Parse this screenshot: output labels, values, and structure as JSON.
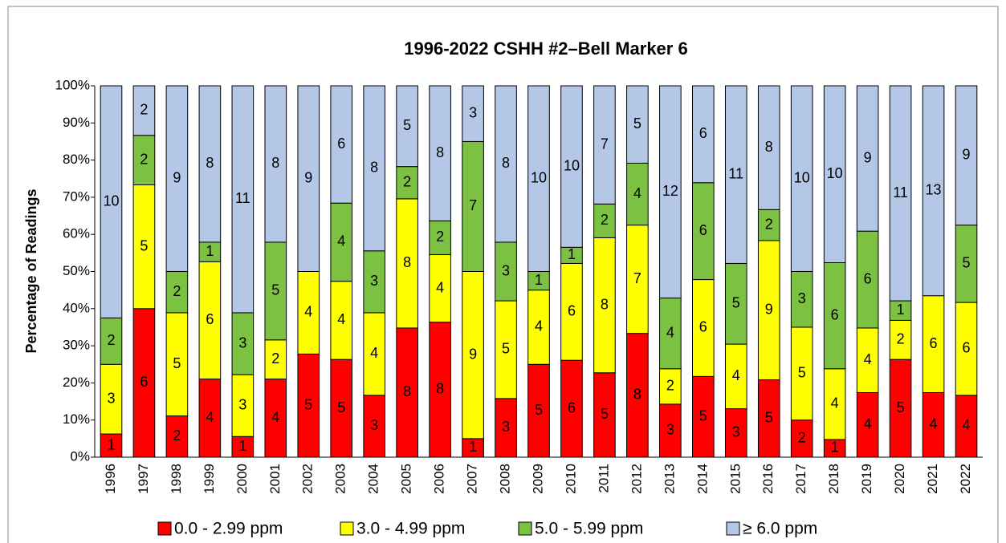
{
  "chart_data": {
    "type": "bar",
    "stacked": "percent",
    "title": "1996-2022 CSHH #2–Bell Marker 6",
    "y_label": "Percentage of Readings",
    "categories": [
      "1996",
      "1997",
      "1998",
      "1999",
      "2000",
      "2001",
      "2002",
      "2003",
      "2004",
      "2005",
      "2006",
      "2007",
      "2008",
      "2009",
      "2010",
      "2011",
      "2012",
      "2013",
      "2014",
      "2015",
      "2016",
      "2017",
      "2018",
      "2019",
      "2020",
      "2021",
      "2022"
    ],
    "series": [
      {
        "name": "0.0 - 2.99 ppm",
        "color": "#ff0000",
        "values": [
          1,
          6,
          2,
          4,
          1,
          4,
          5,
          5,
          3,
          8,
          8,
          1,
          3,
          5,
          6,
          5,
          8,
          3,
          5,
          3,
          5,
          2,
          1,
          4,
          5,
          4,
          4
        ]
      },
      {
        "name": "3.0 - 4.99 ppm",
        "color": "#ffff00",
        "values": [
          3,
          5,
          5,
          6,
          3,
          2,
          4,
          4,
          4,
          8,
          4,
          9,
          5,
          4,
          6,
          8,
          7,
          2,
          6,
          4,
          9,
          5,
          4,
          4,
          2,
          6,
          6
        ]
      },
      {
        "name": "5.0 - 5.99 ppm",
        "color": "#7cc142",
        "values": [
          2,
          2,
          2,
          1,
          3,
          5,
          0,
          4,
          3,
          2,
          2,
          7,
          3,
          1,
          1,
          2,
          4,
          4,
          6,
          5,
          2,
          3,
          6,
          6,
          1,
          0,
          5
        ]
      },
      {
        "name": "≥ 6.0 ppm",
        "color": "#b4c7e7",
        "values": [
          10,
          2,
          9,
          8,
          11,
          8,
          9,
          6,
          8,
          5,
          8,
          3,
          8,
          10,
          10,
          7,
          5,
          12,
          6,
          11,
          8,
          10,
          10,
          9,
          11,
          13,
          9
        ]
      }
    ],
    "ylim": [
      0,
      100
    ],
    "yticks": [
      {
        "value": 0,
        "label": "0%"
      },
      {
        "value": 10,
        "label": "10%"
      },
      {
        "value": 20,
        "label": "20%"
      },
      {
        "value": 30,
        "label": "30%"
      },
      {
        "value": 40,
        "label": "40%"
      },
      {
        "value": 50,
        "label": "50%"
      },
      {
        "value": 60,
        "label": "60%"
      },
      {
        "value": 70,
        "label": "70%"
      },
      {
        "value": 80,
        "label": "80%"
      },
      {
        "value": 90,
        "label": "90%"
      },
      {
        "value": 100,
        "label": "100%"
      }
    ],
    "legend": "bottom"
  }
}
